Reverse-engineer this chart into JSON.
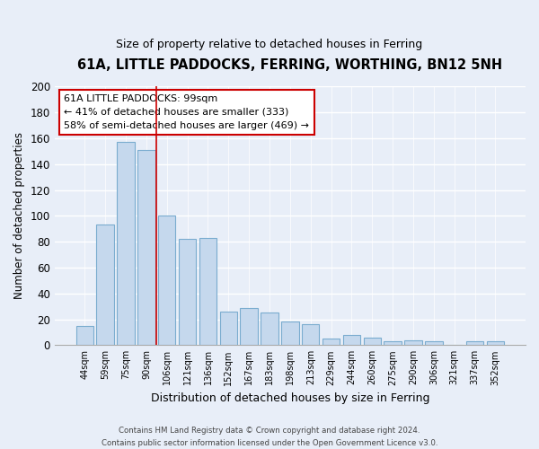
{
  "title": "61A, LITTLE PADDOCKS, FERRING, WORTHING, BN12 5NH",
  "subtitle": "Size of property relative to detached houses in Ferring",
  "xlabel": "Distribution of detached houses by size in Ferring",
  "ylabel": "Number of detached properties",
  "categories": [
    "44sqm",
    "59sqm",
    "75sqm",
    "90sqm",
    "106sqm",
    "121sqm",
    "136sqm",
    "152sqm",
    "167sqm",
    "183sqm",
    "198sqm",
    "213sqm",
    "229sqm",
    "244sqm",
    "260sqm",
    "275sqm",
    "290sqm",
    "306sqm",
    "321sqm",
    "337sqm",
    "352sqm"
  ],
  "values": [
    15,
    93,
    157,
    151,
    100,
    82,
    83,
    26,
    29,
    25,
    18,
    16,
    5,
    8,
    6,
    3,
    4,
    3,
    0,
    3,
    3
  ],
  "bar_color": "#c5d8ed",
  "bar_edge_color": "#7aaccf",
  "annotation_title": "61A LITTLE PADDOCKS: 99sqm",
  "annotation_line1": "← 41% of detached houses are smaller (333)",
  "annotation_line2": "58% of semi-detached houses are larger (469) →",
  "annotation_box_color": "#ffffff",
  "annotation_box_edge_color": "#cc0000",
  "red_line_x": 3.5,
  "ylim": [
    0,
    200
  ],
  "yticks": [
    0,
    20,
    40,
    60,
    80,
    100,
    120,
    140,
    160,
    180,
    200
  ],
  "footer_line1": "Contains HM Land Registry data © Crown copyright and database right 2024.",
  "footer_line2": "Contains public sector information licensed under the Open Government Licence v3.0.",
  "bg_color": "#e8eef8"
}
